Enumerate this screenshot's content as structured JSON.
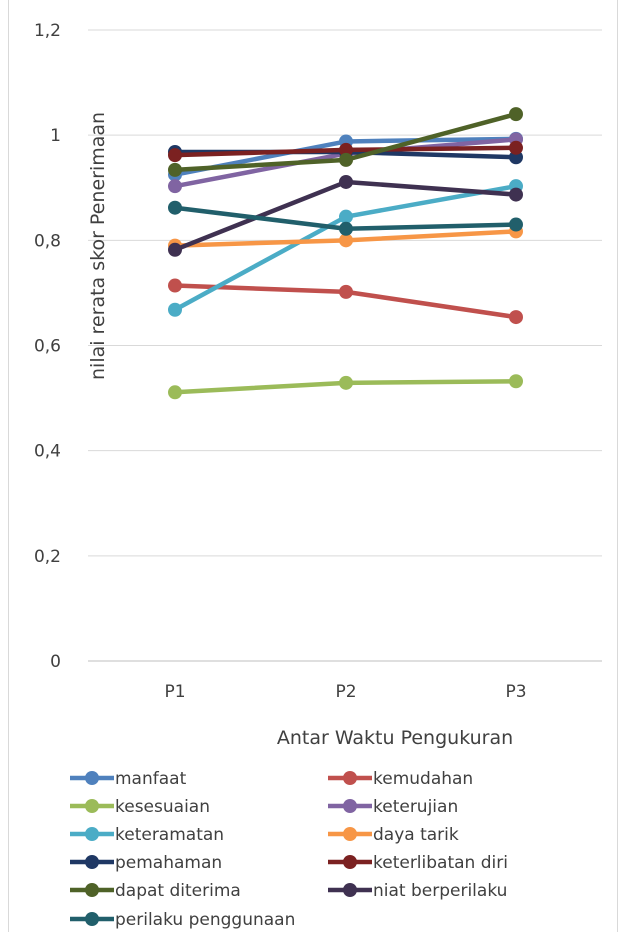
{
  "chart_data": {
    "type": "line",
    "xlabel": "Antar Waktu Pengukuran",
    "ylabel": "nilai rerata skor Penerimaan",
    "categories": [
      "P1",
      "P2",
      "P3"
    ],
    "ylim": [
      0,
      1.2
    ],
    "yticks": [
      "0",
      "0,2",
      "0,4",
      "0,6",
      "0,8",
      "1",
      "1,2"
    ],
    "ytick_values": [
      0,
      0.2,
      0.4,
      0.6,
      0.8,
      1.0,
      1.2
    ],
    "grid": true,
    "legend_position": "bottom",
    "series": [
      {
        "name": "manfaat",
        "color": "#4f81bd",
        "values": [
          0.925,
          0.988,
          0.993
        ]
      },
      {
        "name": "kemudahan",
        "color": "#c0504d",
        "values": [
          0.714,
          0.702,
          0.654
        ]
      },
      {
        "name": "kesesuaian",
        "color": "#9bbb59",
        "values": [
          0.511,
          0.529,
          0.532
        ]
      },
      {
        "name": "keterujian",
        "color": "#8064a2",
        "values": [
          0.903,
          0.965,
          0.992
        ]
      },
      {
        "name": "keteramatan",
        "color": "#4bacc6",
        "values": [
          0.668,
          0.845,
          0.903
        ]
      },
      {
        "name": "daya tarik",
        "color": "#f79646",
        "values": [
          0.79,
          0.8,
          0.817
        ]
      },
      {
        "name": "pemahaman",
        "color": "#1f3864",
        "values": [
          0.968,
          0.968,
          0.958
        ]
      },
      {
        "name": "keterlibatan diri",
        "color": "#7b2121",
        "values": [
          0.962,
          0.972,
          0.976
        ]
      },
      {
        "name": "dapat diterima",
        "color": "#4f6228",
        "values": [
          0.934,
          0.953,
          1.04
        ]
      },
      {
        "name": "niat berperilaku",
        "color": "#3f3151",
        "values": [
          0.782,
          0.911,
          0.887
        ]
      },
      {
        "name": "perilaku penggunaan",
        "color": "#215f6b",
        "values": [
          0.862,
          0.822,
          0.83
        ]
      }
    ]
  }
}
